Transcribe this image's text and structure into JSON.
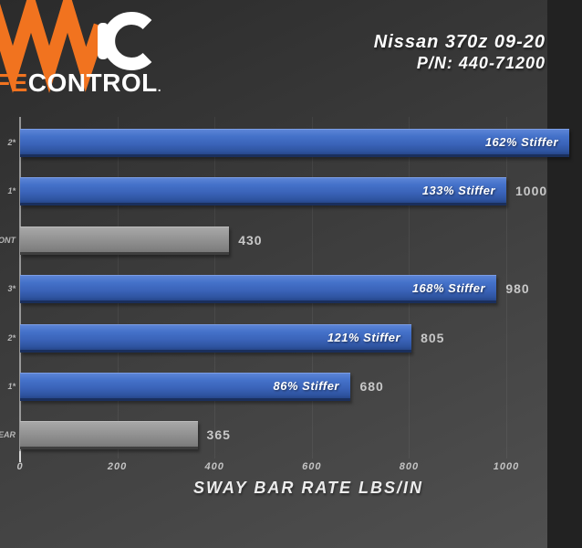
{
  "header": {
    "logo": {
      "icon": "coil-spring-shock-fork-logo",
      "text_orange": "FE",
      "text_white": "CONTROL",
      "trademark_dot": ".",
      "accent_color": "#f1731f"
    },
    "vehicle_line1": "Nissan 370z 09-20",
    "vehicle_line2": "P/N: 440-71200"
  },
  "chart_data": {
    "type": "bar",
    "orientation": "horizontal",
    "title": "SWAY BAR RATE LBS/IN",
    "xlabel": "SWAY BAR RATE LBS/IN",
    "xlim": [
      0,
      1085
    ],
    "x_tick_labels": [
      "0",
      "200",
      "400",
      "600",
      "800",
      "1000"
    ],
    "x_tick_values": [
      0,
      200,
      400,
      600,
      800,
      1000
    ],
    "grid": true,
    "legend": "none",
    "colors": {
      "adjustable_bar_blue": "#3a63b8",
      "stock_bar_gray": "#8c8c8c",
      "background": "#3d3d3d",
      "text_light": "#c8c8c8"
    },
    "bars": [
      {
        "axis_label_fragment": "*2",
        "value": 1130,
        "value_visible": false,
        "value_label": "",
        "bar_label": "162% Stiffer",
        "style": "blue",
        "clipped_at_right_edge": true
      },
      {
        "axis_label_fragment": "*1",
        "value": 1000,
        "value_visible": true,
        "value_label": "1000",
        "bar_label": "133% Stiffer",
        "style": "blue",
        "clipped_at_right_edge": false
      },
      {
        "axis_label_fragment": "ONT",
        "value": 430,
        "value_visible": true,
        "value_label": "430",
        "bar_label": "",
        "style": "gray",
        "clipped_at_right_edge": false
      },
      {
        "axis_label_fragment": "*3",
        "value": 980,
        "value_visible": true,
        "value_label": "980",
        "bar_label": "168% Stiffer",
        "style": "blue",
        "clipped_at_right_edge": false
      },
      {
        "axis_label_fragment": "*2",
        "value": 805,
        "value_visible": true,
        "value_label": "805",
        "bar_label": "121% Stiffer",
        "style": "blue",
        "clipped_at_right_edge": false
      },
      {
        "axis_label_fragment": "*1",
        "value": 680,
        "value_visible": true,
        "value_label": "680",
        "bar_label": "86% Stiffer",
        "style": "blue",
        "clipped_at_right_edge": false
      },
      {
        "axis_label_fragment": "EAR",
        "value": 365,
        "value_visible": true,
        "value_label": "365",
        "bar_label": "",
        "style": "gray",
        "clipped_at_right_edge": false
      }
    ]
  }
}
